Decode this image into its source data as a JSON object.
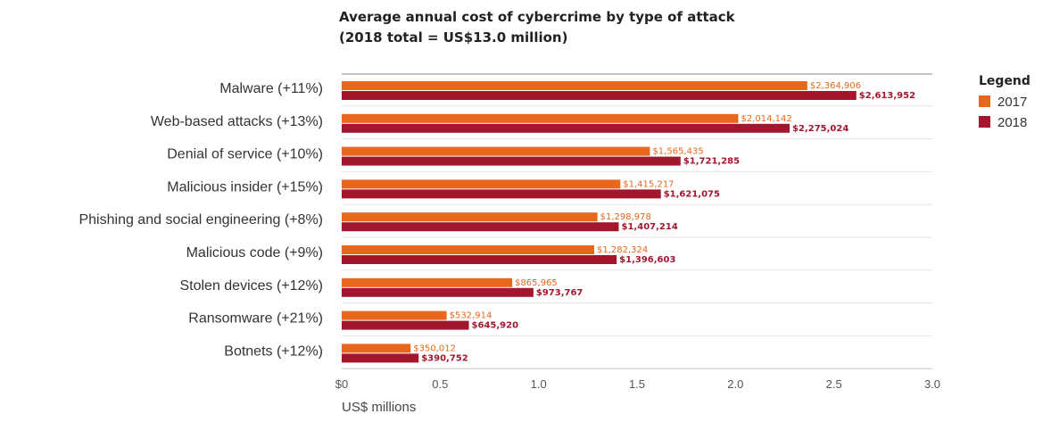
{
  "chart_data": {
    "type": "bar",
    "orientation": "horizontal",
    "title_line1": "Average annual cost of cybercrime by type of attack",
    "title_line2": "(2018 total = US$13.0 million)",
    "xlabel": "US$ millions",
    "ylabel": "",
    "xlim": [
      0,
      3.0
    ],
    "x_ticks": [
      {
        "value": 0,
        "label": "$0"
      },
      {
        "value": 0.5,
        "label": "0.5"
      },
      {
        "value": 1.0,
        "label": "1.0"
      },
      {
        "value": 1.5,
        "label": "1.5"
      },
      {
        "value": 2.0,
        "label": "2.0"
      },
      {
        "value": 2.5,
        "label": "2.5"
      },
      {
        "value": 3.0,
        "label": "3.0"
      }
    ],
    "categories": [
      "Malware (+11%)",
      "Web-based attacks (+13%)",
      "Denial of service (+10%)",
      "Malicious insider (+15%)",
      "Phishing and social engineering (+8%)",
      "Malicious code (+9%)",
      "Stolen devices (+12%)",
      "Ransomware (+21%)",
      "Botnets (+12%)"
    ],
    "series": [
      {
        "name": "2017",
        "color": "#e8671c",
        "values": [
          2.364906,
          2.014142,
          1.565435,
          1.415217,
          1.298978,
          1.282324,
          0.865965,
          0.532914,
          0.350012
        ],
        "labels": [
          "$2,364,906",
          "$2,014,142",
          "$1,565,435",
          "$1,415,217",
          "$1,298,978",
          "$1,282,324",
          "$865,965",
          "$532,914",
          "$350,012"
        ]
      },
      {
        "name": "2018",
        "color": "#a3162e",
        "values": [
          2.613952,
          2.275024,
          1.721285,
          1.621075,
          1.407214,
          1.396603,
          0.973767,
          0.64592,
          0.390752
        ],
        "labels": [
          "$2,613,952",
          "$2,275,024",
          "$1,721,285",
          "$1,621,075",
          "$1,407,214",
          "$1,396,603",
          "$973,767",
          "$645,920",
          "$390,752"
        ]
      }
    ],
    "legend": {
      "title": "Legend",
      "position": "right"
    },
    "grid": {
      "horizontal_separators": true,
      "vertical": false
    }
  }
}
